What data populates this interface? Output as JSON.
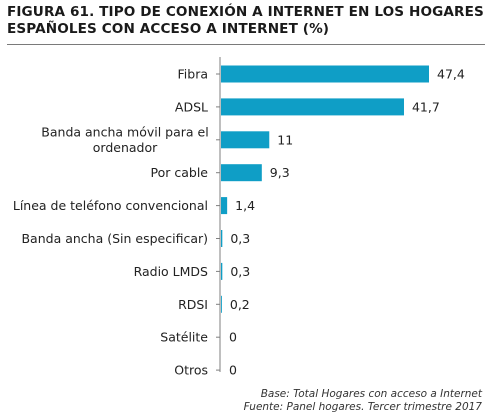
{
  "colors": {
    "bar": "#0f9ec6",
    "axis": "#7f7f7f",
    "text": "#222222"
  },
  "chart_data": {
    "type": "bar",
    "orientation": "horizontal",
    "title": "FIGURA 61. TIPO DE CONEXIÓN A INTERNET EN LOS HOGARES ESPAÑOLES CON ACCESO A INTERNET (%)",
    "categories": [
      [
        "Fibra"
      ],
      [
        "ADSL"
      ],
      [
        "Banda ancha móvil para el",
        "ordenador"
      ],
      [
        "Por cable"
      ],
      [
        "Línea de teléfono convencional"
      ],
      [
        "Banda ancha (Sin especificar)"
      ],
      [
        "Radio LMDS"
      ],
      [
        "RDSI"
      ],
      [
        "Satélite"
      ],
      [
        "Otros"
      ]
    ],
    "values": [
      47.4,
      41.7,
      11,
      9.3,
      1.4,
      0.3,
      0.3,
      0.2,
      0,
      0
    ],
    "value_labels": [
      "47,4",
      "41,7",
      "11",
      "9,3",
      "1,4",
      "0,3",
      "0,3",
      "0,2",
      "0",
      "0"
    ],
    "xlim": [
      0,
      50
    ],
    "grid": false,
    "legend": "none"
  },
  "footnotes": {
    "base": "Base: Total Hogares con acceso a Internet",
    "source": "Fuente: Panel hogares. Tercer trimestre 2017"
  }
}
